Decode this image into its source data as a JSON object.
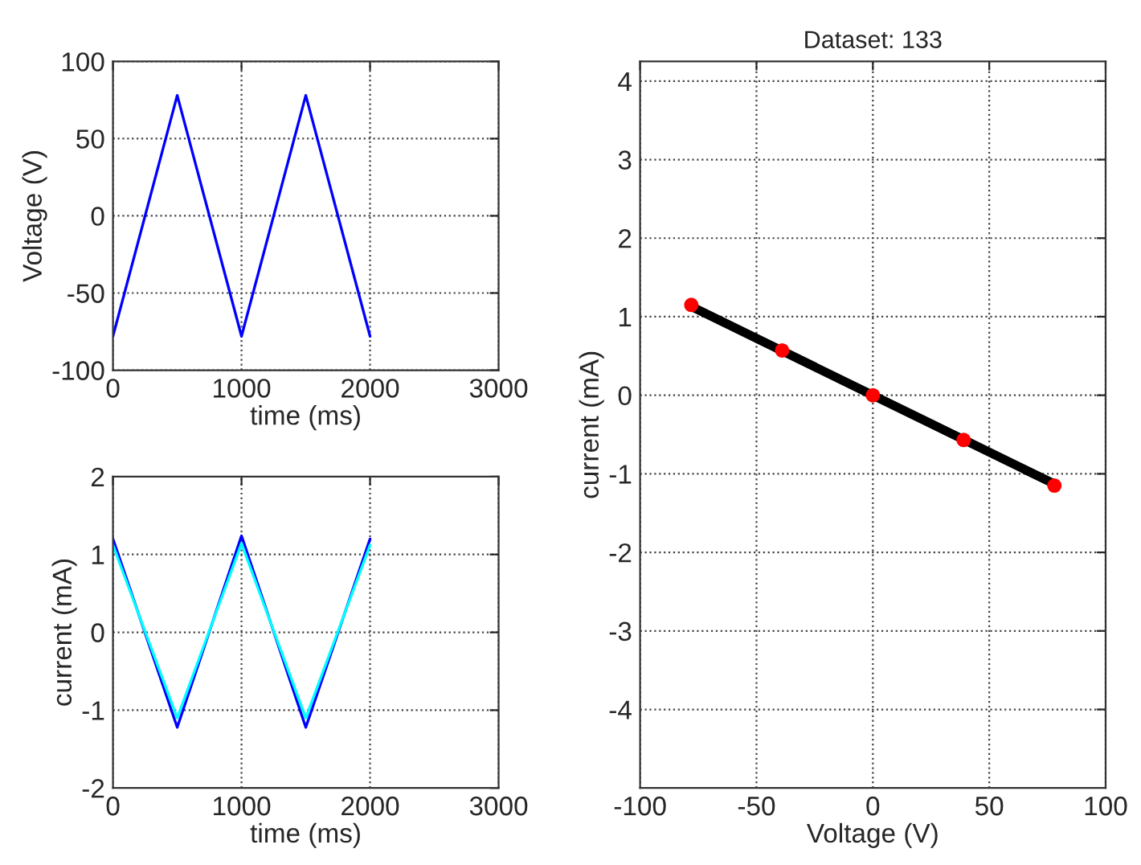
{
  "chart_data": [
    {
      "type": "line",
      "xlabel": "time (ms)",
      "ylabel": "Voltage (V)",
      "x": [
        0,
        500,
        1000,
        1500,
        2000
      ],
      "series": [
        {
          "color": "#0000ff",
          "values": [
            -78,
            78,
            -78,
            78,
            -78
          ]
        }
      ],
      "xlim": [
        0,
        3000
      ],
      "xticks": [
        0,
        1000,
        2000,
        3000
      ],
      "ylim": [
        -100,
        100
      ],
      "yticks": [
        -100,
        -50,
        0,
        50,
        100
      ],
      "grid": true,
      "line_style": "solid"
    },
    {
      "type": "line",
      "xlabel": "time (ms)",
      "ylabel": "current (mA)",
      "x": [
        0,
        500,
        1000,
        1500,
        2000
      ],
      "series": [
        {
          "color": "#0000ff",
          "values": [
            1.2,
            -1.22,
            1.24,
            -1.22,
            1.2
          ]
        },
        {
          "color": "#00ffff",
          "values": [
            1.12,
            -1.1,
            1.14,
            -1.1,
            1.12
          ]
        }
      ],
      "xlim": [
        0,
        3000
      ],
      "xticks": [
        0,
        1000,
        2000,
        3000
      ],
      "ylim": [
        -2,
        2
      ],
      "yticks": [
        -2,
        -1,
        0,
        1,
        2
      ],
      "grid": true,
      "line_style": "solid"
    },
    {
      "type": "line",
      "title": "Dataset: 133",
      "xlabel": "Voltage (V)",
      "ylabel": "current (mA)",
      "series": [
        {
          "type": "scatter",
          "color": "#ff0000",
          "marker": "circle",
          "x": [
            -78,
            -39,
            0,
            39,
            78
          ],
          "values": [
            1.15,
            0.57,
            0,
            -0.57,
            -1.15
          ]
        },
        {
          "type": "line",
          "color": "#000000",
          "x": [
            -78,
            78
          ],
          "values": [
            1.13,
            -1.13
          ]
        }
      ],
      "xlim": [
        -100,
        100
      ],
      "xticks": [
        -100,
        -50,
        0,
        50,
        100
      ],
      "ylim": [
        -5,
        4.25
      ],
      "yticks": [
        -4,
        -3,
        -2,
        -1,
        0,
        1,
        2,
        3,
        4
      ],
      "grid": true,
      "line_style": "solid"
    }
  ]
}
